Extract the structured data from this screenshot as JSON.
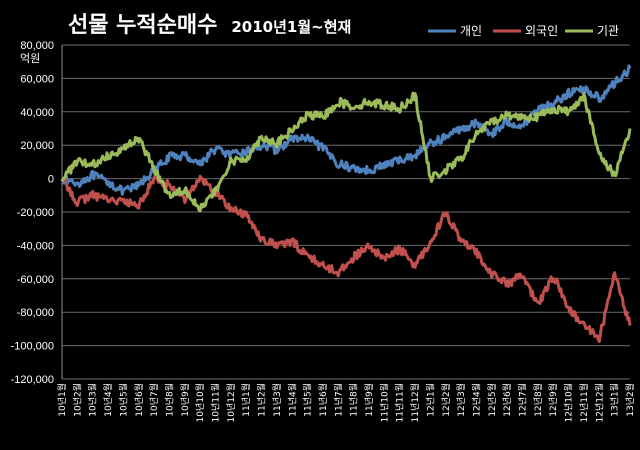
{
  "chart_data": {
    "type": "line",
    "title": "선물 누적순매수",
    "subtitle": "2010년1월~현재",
    "ylabel": "억원",
    "ylim": [
      -120000,
      80000
    ],
    "yticks": [
      80000,
      60000,
      40000,
      20000,
      0,
      -20000,
      -40000,
      -60000,
      -80000,
      -100000,
      -120000
    ],
    "ytick_labels": [
      "80,000",
      "60,000",
      "40,000",
      "20,000",
      "0",
      "-20,000",
      "-40,000",
      "-60,000",
      "-80,000",
      "-100,000",
      "-120,000"
    ],
    "grid": true,
    "legend_position": "top-right",
    "background": "#000000",
    "xtick_labels": [
      "10년1월",
      "10년2월",
      "10년3월",
      "10년4월",
      "10년5월",
      "10년6월",
      "10년7월",
      "10년8월",
      "10년9월",
      "10년10월",
      "10년11월",
      "10년12월",
      "11년1월",
      "11년2월",
      "11년3월",
      "11년4월",
      "11년5월",
      "11년6월",
      "11년7월",
      "11년8월",
      "11년9월",
      "11년10월",
      "11년11월",
      "11년12월",
      "12년1월",
      "12년2월",
      "12년3월",
      "12년4월",
      "12년5월",
      "12년6월",
      "12년7월",
      "12년8월",
      "12년9월",
      "12년10월",
      "12년11월",
      "12년12월",
      "13년1월",
      "13년2월"
    ],
    "x": [
      "10년1월",
      "10년2월",
      "10년3월",
      "10년4월",
      "10년5월",
      "10년6월",
      "10년7월",
      "10년8월",
      "10년9월",
      "10년10월",
      "10년11월",
      "10년12월",
      "11년1월",
      "11년2월",
      "11년3월",
      "11년4월",
      "11년5월",
      "11년6월",
      "11년7월",
      "11년8월",
      "11년9월",
      "11년10월",
      "11년11월",
      "11년12월",
      "12년1월",
      "12년2월",
      "12년3월",
      "12년4월",
      "12년5월",
      "12년6월",
      "12년7월",
      "12년8월",
      "12년9월",
      "12년10월",
      "12년11월",
      "12년12월",
      "13년1월",
      "13년2월"
    ],
    "series": [
      {
        "name": "개인",
        "color": "#4f81bd",
        "values": [
          0,
          -3000,
          2000,
          -2000,
          -8000,
          -4000,
          5000,
          13000,
          14000,
          9000,
          18000,
          14000,
          16000,
          20000,
          17000,
          24000,
          24000,
          18000,
          9000,
          6000,
          5000,
          8000,
          11000,
          14000,
          21000,
          25000,
          30000,
          33000,
          27000,
          34000,
          32000,
          42000,
          45000,
          51000,
          54000,
          48000,
          57000,
          66000
        ]
      },
      {
        "name": "외국인",
        "color": "#c0504d",
        "values": [
          0,
          -14000,
          -10000,
          -12000,
          -14000,
          -16000,
          0,
          -4000,
          -12000,
          0,
          -8000,
          -18000,
          -22000,
          -36000,
          -40000,
          -38000,
          -46000,
          -52000,
          -56000,
          -47000,
          -41000,
          -48000,
          -42000,
          -52000,
          -38000,
          -20000,
          -38000,
          -44000,
          -57000,
          -63000,
          -58000,
          -76000,
          -58000,
          -78000,
          -88000,
          -96000,
          -57000,
          -88000
        ]
      },
      {
        "name": "기관",
        "color": "#9bbb59",
        "values": [
          0,
          10000,
          8000,
          14000,
          18000,
          24000,
          6000,
          -10000,
          -6000,
          -18000,
          -8000,
          10000,
          12000,
          25000,
          21000,
          29000,
          38000,
          37000,
          46000,
          43000,
          46000,
          44000,
          42000,
          50000,
          0,
          5000,
          12000,
          27000,
          34000,
          38000,
          37000,
          37000,
          42000,
          40000,
          50000,
          14000,
          2000,
          30000
        ]
      }
    ]
  }
}
